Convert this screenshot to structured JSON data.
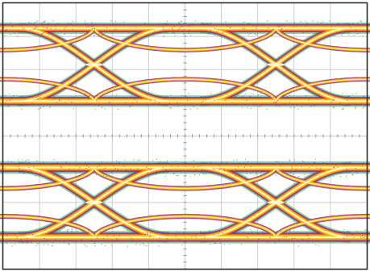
{
  "screen": {
    "background": "#ffffff",
    "frame_color": "#2b2b2b",
    "grid_color": "#c9ced3",
    "graticule": {
      "columns": 10,
      "rows": 8,
      "minor_ticks_per_division": 5
    }
  },
  "chart_data": {
    "type": "eye-diagram",
    "title": "",
    "xlabel": "",
    "ylabel": "",
    "grid": true,
    "unit_intervals_shown": 2.0,
    "crossing_positions_ui": [
      0.5,
      1.5
    ],
    "palette": {
      "peak": "#fffcdc",
      "high": "#f7c81c",
      "mid": "#f08c14",
      "low": "#d22e6e",
      "edge": "#5a3aa0",
      "sparse": "#3aa04a"
    },
    "eyes": [
      {
        "name": "upper",
        "level_high_div": 3.25,
        "level_low_div": 1.05,
        "level_spread_div": 0.22,
        "transition_width_ui": 0.26
      },
      {
        "name": "lower",
        "level_high_div": -0.95,
        "level_low_div": -3.05,
        "level_spread_div": 0.24,
        "transition_width_ui": 0.26
      }
    ]
  }
}
